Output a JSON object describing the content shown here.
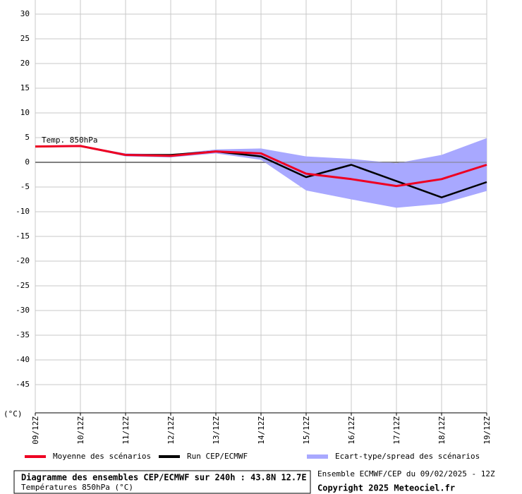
{
  "chart_data": {
    "type": "line",
    "annotation": "Temp. 850hPa",
    "y_unit_label": "(°C)",
    "categories": [
      "09/12Z",
      "10/12Z",
      "11/12Z",
      "12/12Z",
      "13/12Z",
      "14/12Z",
      "15/12Z",
      "16/12Z",
      "17/12Z",
      "18/12Z",
      "19/12Z"
    ],
    "series": [
      {
        "name": "Moyenne des scénarios",
        "color": "#ee0022",
        "values": [
          3.2,
          3.3,
          1.5,
          1.3,
          2.2,
          1.8,
          -2.3,
          -3.4,
          -4.8,
          -3.4,
          -0.5
        ]
      },
      {
        "name": "Run CEP/ECMWF",
        "color": "#000000",
        "values": [
          3.2,
          3.3,
          1.5,
          1.5,
          2.2,
          1.2,
          -3.0,
          -0.5,
          -3.8,
          -7.1,
          -4.0
        ]
      },
      {
        "name": "Ecart-type/spread des scénarios",
        "color": "#a8a8ff",
        "upper": [
          3.3,
          3.4,
          1.8,
          1.6,
          2.6,
          2.8,
          1.2,
          0.7,
          -0.2,
          1.5,
          4.9
        ],
        "lower": [
          3.0,
          3.2,
          1.2,
          1.0,
          1.8,
          0.5,
          -5.7,
          -7.5,
          -9.2,
          -8.4,
          -5.8
        ]
      }
    ],
    "ylim": [
      -50,
      30
    ],
    "yticks": [
      -45,
      -40,
      -35,
      -30,
      -25,
      -20,
      -15,
      -10,
      -5,
      0,
      5,
      10,
      15,
      20,
      25,
      30
    ],
    "grid": true,
    "footer": {
      "title": "Diagramme des ensembles CEP/ECMWF sur 240h : 43.8N 12.7E",
      "subtitle": "Températures 850hPa (°C)",
      "run": "Ensemble ECMWF/CEP du 09/02/2025 - 12Z",
      "copyright": "Copyright 2025 Meteociel.fr"
    }
  }
}
